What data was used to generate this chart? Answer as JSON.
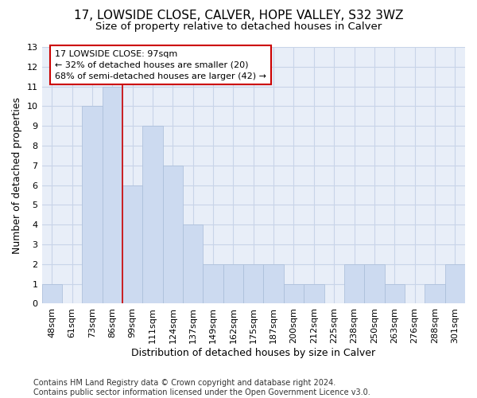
{
  "title1": "17, LOWSIDE CLOSE, CALVER, HOPE VALLEY, S32 3WZ",
  "title2": "Size of property relative to detached houses in Calver",
  "xlabel": "Distribution of detached houses by size in Calver",
  "ylabel": "Number of detached properties",
  "categories": [
    "48sqm",
    "61sqm",
    "73sqm",
    "86sqm",
    "99sqm",
    "111sqm",
    "124sqm",
    "137sqm",
    "149sqm",
    "162sqm",
    "175sqm",
    "187sqm",
    "200sqm",
    "212sqm",
    "225sqm",
    "238sqm",
    "250sqm",
    "263sqm",
    "276sqm",
    "288sqm",
    "301sqm"
  ],
  "values": [
    1,
    0,
    10,
    11,
    6,
    9,
    7,
    4,
    2,
    2,
    2,
    2,
    1,
    1,
    0,
    2,
    2,
    1,
    0,
    1,
    2
  ],
  "bar_color": "#ccdaf0",
  "bar_edge_color": "#a8bcd8",
  "annotation_text": "17 LOWSIDE CLOSE: 97sqm\n← 32% of detached houses are smaller (20)\n68% of semi-detached houses are larger (42) →",
  "annotation_box_color": "white",
  "annotation_box_edge_color": "#cc0000",
  "vline_color": "#cc0000",
  "ylim": [
    0,
    13
  ],
  "yticks": [
    0,
    1,
    2,
    3,
    4,
    5,
    6,
    7,
    8,
    9,
    10,
    11,
    12,
    13
  ],
  "grid_color": "#c8d4e8",
  "background_color": "#e8eef8",
  "footer": "Contains HM Land Registry data © Crown copyright and database right 2024.\nContains public sector information licensed under the Open Government Licence v3.0.",
  "title1_fontsize": 11,
  "title2_fontsize": 9.5,
  "xlabel_fontsize": 9,
  "ylabel_fontsize": 9,
  "footer_fontsize": 7,
  "tick_fontsize": 8,
  "annotation_fontsize": 8
}
